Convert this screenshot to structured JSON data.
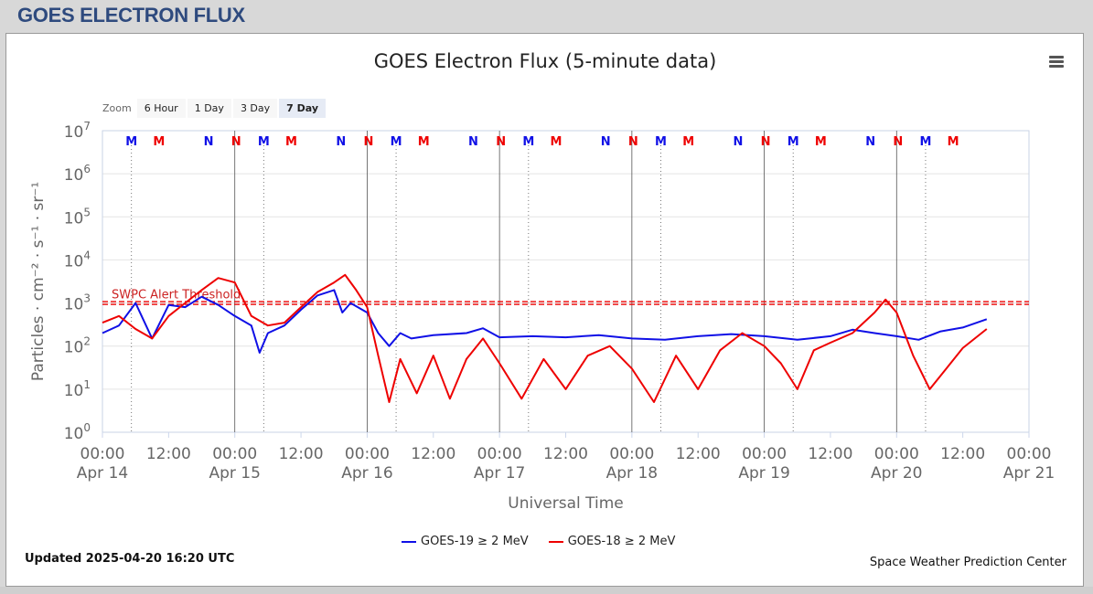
{
  "header": {
    "title": "GOES ELECTRON FLUX"
  },
  "toolbar": {
    "zoom_label": "Zoom",
    "zoom_buttons": [
      "6 Hour",
      "1 Day",
      "3 Day",
      "7 Day"
    ],
    "zoom_active": "7 Day",
    "menu_icon": "hamburger-menu-icon"
  },
  "footer": {
    "updated": "Updated 2025-04-20 16:20 UTC",
    "credit": "Space Weather Prediction Center"
  },
  "colors": {
    "goes19": "#1010e6",
    "goes18": "#ee0000",
    "threshold": "#cc0000",
    "title": "#2e4a7e"
  },
  "chart_data": {
    "type": "line",
    "title": "GOES Electron Flux (5-minute data)",
    "xlabel": "Universal Time",
    "ylabel": "Particles · cm⁻² · s⁻¹ · sr⁻¹",
    "y_scale": "log",
    "ylim": [
      1,
      10000000
    ],
    "y_ticks": [
      {
        "base": "10",
        "exp": "0",
        "value": 1
      },
      {
        "base": "10",
        "exp": "1",
        "value": 10
      },
      {
        "base": "10",
        "exp": "2",
        "value": 100
      },
      {
        "base": "10",
        "exp": "3",
        "value": 1000
      },
      {
        "base": "10",
        "exp": "4",
        "value": 10000
      },
      {
        "base": "10",
        "exp": "5",
        "value": 100000
      },
      {
        "base": "10",
        "exp": "6",
        "value": 1000000
      },
      {
        "base": "10",
        "exp": "7",
        "value": 10000000
      }
    ],
    "xlim": [
      "2025-04-14 00:00",
      "2025-04-21 00:00"
    ],
    "x_ticks": [
      {
        "time": "2025-04-14 00:00",
        "l1": "00:00",
        "l2": "Apr 14"
      },
      {
        "time": "2025-04-14 12:00",
        "l1": "12:00",
        "l2": ""
      },
      {
        "time": "2025-04-15 00:00",
        "l1": "00:00",
        "l2": "Apr 15"
      },
      {
        "time": "2025-04-15 12:00",
        "l1": "12:00",
        "l2": ""
      },
      {
        "time": "2025-04-16 00:00",
        "l1": "00:00",
        "l2": "Apr 16"
      },
      {
        "time": "2025-04-16 12:00",
        "l1": "12:00",
        "l2": ""
      },
      {
        "time": "2025-04-17 00:00",
        "l1": "00:00",
        "l2": "Apr 17"
      },
      {
        "time": "2025-04-17 12:00",
        "l1": "12:00",
        "l2": ""
      },
      {
        "time": "2025-04-18 00:00",
        "l1": "00:00",
        "l2": "Apr 18"
      },
      {
        "time": "2025-04-18 12:00",
        "l1": "12:00",
        "l2": ""
      },
      {
        "time": "2025-04-19 00:00",
        "l1": "00:00",
        "l2": "Apr 19"
      },
      {
        "time": "2025-04-19 12:00",
        "l1": "12:00",
        "l2": ""
      },
      {
        "time": "2025-04-20 00:00",
        "l1": "00:00",
        "l2": "Apr 20"
      },
      {
        "time": "2025-04-20 12:00",
        "l1": "12:00",
        "l2": ""
      },
      {
        "time": "2025-04-21 00:00",
        "l1": "00:00",
        "l2": "Apr 21"
      }
    ],
    "grid": true,
    "threshold": {
      "value": 1000,
      "label": "SWPC Alert Threshold"
    },
    "legend_position": "bottom-center",
    "markers": [
      {
        "time": "2025-04-14 05:15",
        "label": "M",
        "color": "#1010e6"
      },
      {
        "time": "2025-04-14 10:15",
        "label": "M",
        "color": "#ee0000"
      },
      {
        "time": "2025-04-14 19:15",
        "label": "N",
        "color": "#1010e6"
      },
      {
        "time": "2025-04-14 24:15",
        "label": "N",
        "color": "#ee0000"
      },
      {
        "time": "2025-04-15 05:15",
        "label": "M",
        "color": "#1010e6"
      },
      {
        "time": "2025-04-15 10:15",
        "label": "M",
        "color": "#ee0000"
      },
      {
        "time": "2025-04-15 19:15",
        "label": "N",
        "color": "#1010e6"
      },
      {
        "time": "2025-04-15 24:15",
        "label": "N",
        "color": "#ee0000"
      },
      {
        "time": "2025-04-16 05:15",
        "label": "M",
        "color": "#1010e6"
      },
      {
        "time": "2025-04-16 10:15",
        "label": "M",
        "color": "#ee0000"
      },
      {
        "time": "2025-04-16 19:15",
        "label": "N",
        "color": "#1010e6"
      },
      {
        "time": "2025-04-16 24:15",
        "label": "N",
        "color": "#ee0000"
      },
      {
        "time": "2025-04-17 05:15",
        "label": "M",
        "color": "#1010e6"
      },
      {
        "time": "2025-04-17 10:15",
        "label": "M",
        "color": "#ee0000"
      },
      {
        "time": "2025-04-17 19:15",
        "label": "N",
        "color": "#1010e6"
      },
      {
        "time": "2025-04-17 24:15",
        "label": "N",
        "color": "#ee0000"
      },
      {
        "time": "2025-04-18 05:15",
        "label": "M",
        "color": "#1010e6"
      },
      {
        "time": "2025-04-18 10:15",
        "label": "M",
        "color": "#ee0000"
      },
      {
        "time": "2025-04-18 19:15",
        "label": "N",
        "color": "#1010e6"
      },
      {
        "time": "2025-04-18 24:15",
        "label": "N",
        "color": "#ee0000"
      },
      {
        "time": "2025-04-19 05:15",
        "label": "M",
        "color": "#1010e6"
      },
      {
        "time": "2025-04-19 10:15",
        "label": "M",
        "color": "#ee0000"
      },
      {
        "time": "2025-04-19 19:15",
        "label": "N",
        "color": "#1010e6"
      },
      {
        "time": "2025-04-19 24:15",
        "label": "N",
        "color": "#ee0000"
      },
      {
        "time": "2025-04-20 05:15",
        "label": "M",
        "color": "#1010e6"
      },
      {
        "time": "2025-04-20 10:15",
        "label": "M",
        "color": "#ee0000"
      }
    ],
    "series": [
      {
        "name": "GOES-19 ≥ 2 MeV",
        "color": "#1010e6",
        "points": [
          [
            "2025-04-14 00:00",
            200
          ],
          [
            "2025-04-14 03:00",
            300
          ],
          [
            "2025-04-14 06:00",
            1000
          ],
          [
            "2025-04-14 09:00",
            150
          ],
          [
            "2025-04-14 12:00",
            900
          ],
          [
            "2025-04-14 15:00",
            800
          ],
          [
            "2025-04-14 18:00",
            1400
          ],
          [
            "2025-04-14 21:00",
            900
          ],
          [
            "2025-04-15 00:00",
            500
          ],
          [
            "2025-04-15 03:00",
            300
          ],
          [
            "2025-04-15 04:30",
            70
          ],
          [
            "2025-04-15 06:00",
            200
          ],
          [
            "2025-04-15 09:00",
            300
          ],
          [
            "2025-04-15 12:00",
            700
          ],
          [
            "2025-04-15 15:00",
            1500
          ],
          [
            "2025-04-15 18:00",
            2000
          ],
          [
            "2025-04-15 19:30",
            600
          ],
          [
            "2025-04-15 21:00",
            1000
          ],
          [
            "2025-04-16 00:00",
            600
          ],
          [
            "2025-04-16 02:00",
            200
          ],
          [
            "2025-04-16 04:00",
            100
          ],
          [
            "2025-04-16 06:00",
            200
          ],
          [
            "2025-04-16 08:00",
            150
          ],
          [
            "2025-04-16 12:00",
            180
          ],
          [
            "2025-04-16 18:00",
            200
          ],
          [
            "2025-04-16 21:00",
            260
          ],
          [
            "2025-04-17 00:00",
            160
          ],
          [
            "2025-04-17 06:00",
            170
          ],
          [
            "2025-04-17 12:00",
            160
          ],
          [
            "2025-04-17 18:00",
            180
          ],
          [
            "2025-04-18 00:00",
            150
          ],
          [
            "2025-04-18 06:00",
            140
          ],
          [
            "2025-04-18 12:00",
            170
          ],
          [
            "2025-04-18 18:00",
            190
          ],
          [
            "2025-04-19 00:00",
            170
          ],
          [
            "2025-04-19 06:00",
            140
          ],
          [
            "2025-04-19 12:00",
            170
          ],
          [
            "2025-04-19 16:00",
            240
          ],
          [
            "2025-04-19 20:00",
            200
          ],
          [
            "2025-04-20 00:00",
            170
          ],
          [
            "2025-04-20 04:00",
            140
          ],
          [
            "2025-04-20 08:00",
            220
          ],
          [
            "2025-04-20 12:00",
            270
          ],
          [
            "2025-04-20 16:20",
            420
          ]
        ]
      },
      {
        "name": "GOES-18 ≥ 2 MeV",
        "color": "#ee0000",
        "points": [
          [
            "2025-04-14 00:00",
            350
          ],
          [
            "2025-04-14 03:00",
            500
          ],
          [
            "2025-04-14 06:00",
            250
          ],
          [
            "2025-04-14 09:00",
            150
          ],
          [
            "2025-04-14 12:00",
            500
          ],
          [
            "2025-04-14 15:00",
            1000
          ],
          [
            "2025-04-14 18:00",
            2000
          ],
          [
            "2025-04-14 21:00",
            3800
          ],
          [
            "2025-04-15 00:00",
            3000
          ],
          [
            "2025-04-15 03:00",
            500
          ],
          [
            "2025-04-15 06:00",
            300
          ],
          [
            "2025-04-15 09:00",
            350
          ],
          [
            "2025-04-15 12:00",
            800
          ],
          [
            "2025-04-15 15:00",
            1800
          ],
          [
            "2025-04-15 18:00",
            3000
          ],
          [
            "2025-04-15 20:00",
            4500
          ],
          [
            "2025-04-15 22:00",
            2000
          ],
          [
            "2025-04-16 00:00",
            800
          ],
          [
            "2025-04-16 02:00",
            60
          ],
          [
            "2025-04-16 04:00",
            5
          ],
          [
            "2025-04-16 06:00",
            50
          ],
          [
            "2025-04-16 09:00",
            8
          ],
          [
            "2025-04-16 12:00",
            60
          ],
          [
            "2025-04-16 15:00",
            6
          ],
          [
            "2025-04-16 18:00",
            50
          ],
          [
            "2025-04-16 21:00",
            150
          ],
          [
            "2025-04-17 00:00",
            40
          ],
          [
            "2025-04-17 04:00",
            6
          ],
          [
            "2025-04-17 08:00",
            50
          ],
          [
            "2025-04-17 12:00",
            10
          ],
          [
            "2025-04-17 16:00",
            60
          ],
          [
            "2025-04-17 20:00",
            100
          ],
          [
            "2025-04-18 00:00",
            30
          ],
          [
            "2025-04-18 04:00",
            5
          ],
          [
            "2025-04-18 08:00",
            60
          ],
          [
            "2025-04-18 12:00",
            10
          ],
          [
            "2025-04-18 16:00",
            80
          ],
          [
            "2025-04-18 20:00",
            200
          ],
          [
            "2025-04-19 00:00",
            100
          ],
          [
            "2025-04-19 03:00",
            40
          ],
          [
            "2025-04-19 06:00",
            10
          ],
          [
            "2025-04-19 09:00",
            80
          ],
          [
            "2025-04-19 12:00",
            120
          ],
          [
            "2025-04-19 16:00",
            200
          ],
          [
            "2025-04-19 20:00",
            600
          ],
          [
            "2025-04-19 22:00",
            1200
          ],
          [
            "2025-04-20 00:00",
            600
          ],
          [
            "2025-04-20 03:00",
            60
          ],
          [
            "2025-04-20 06:00",
            10
          ],
          [
            "2025-04-20 09:00",
            30
          ],
          [
            "2025-04-20 12:00",
            90
          ],
          [
            "2025-04-20 16:20",
            250
          ]
        ]
      }
    ]
  }
}
